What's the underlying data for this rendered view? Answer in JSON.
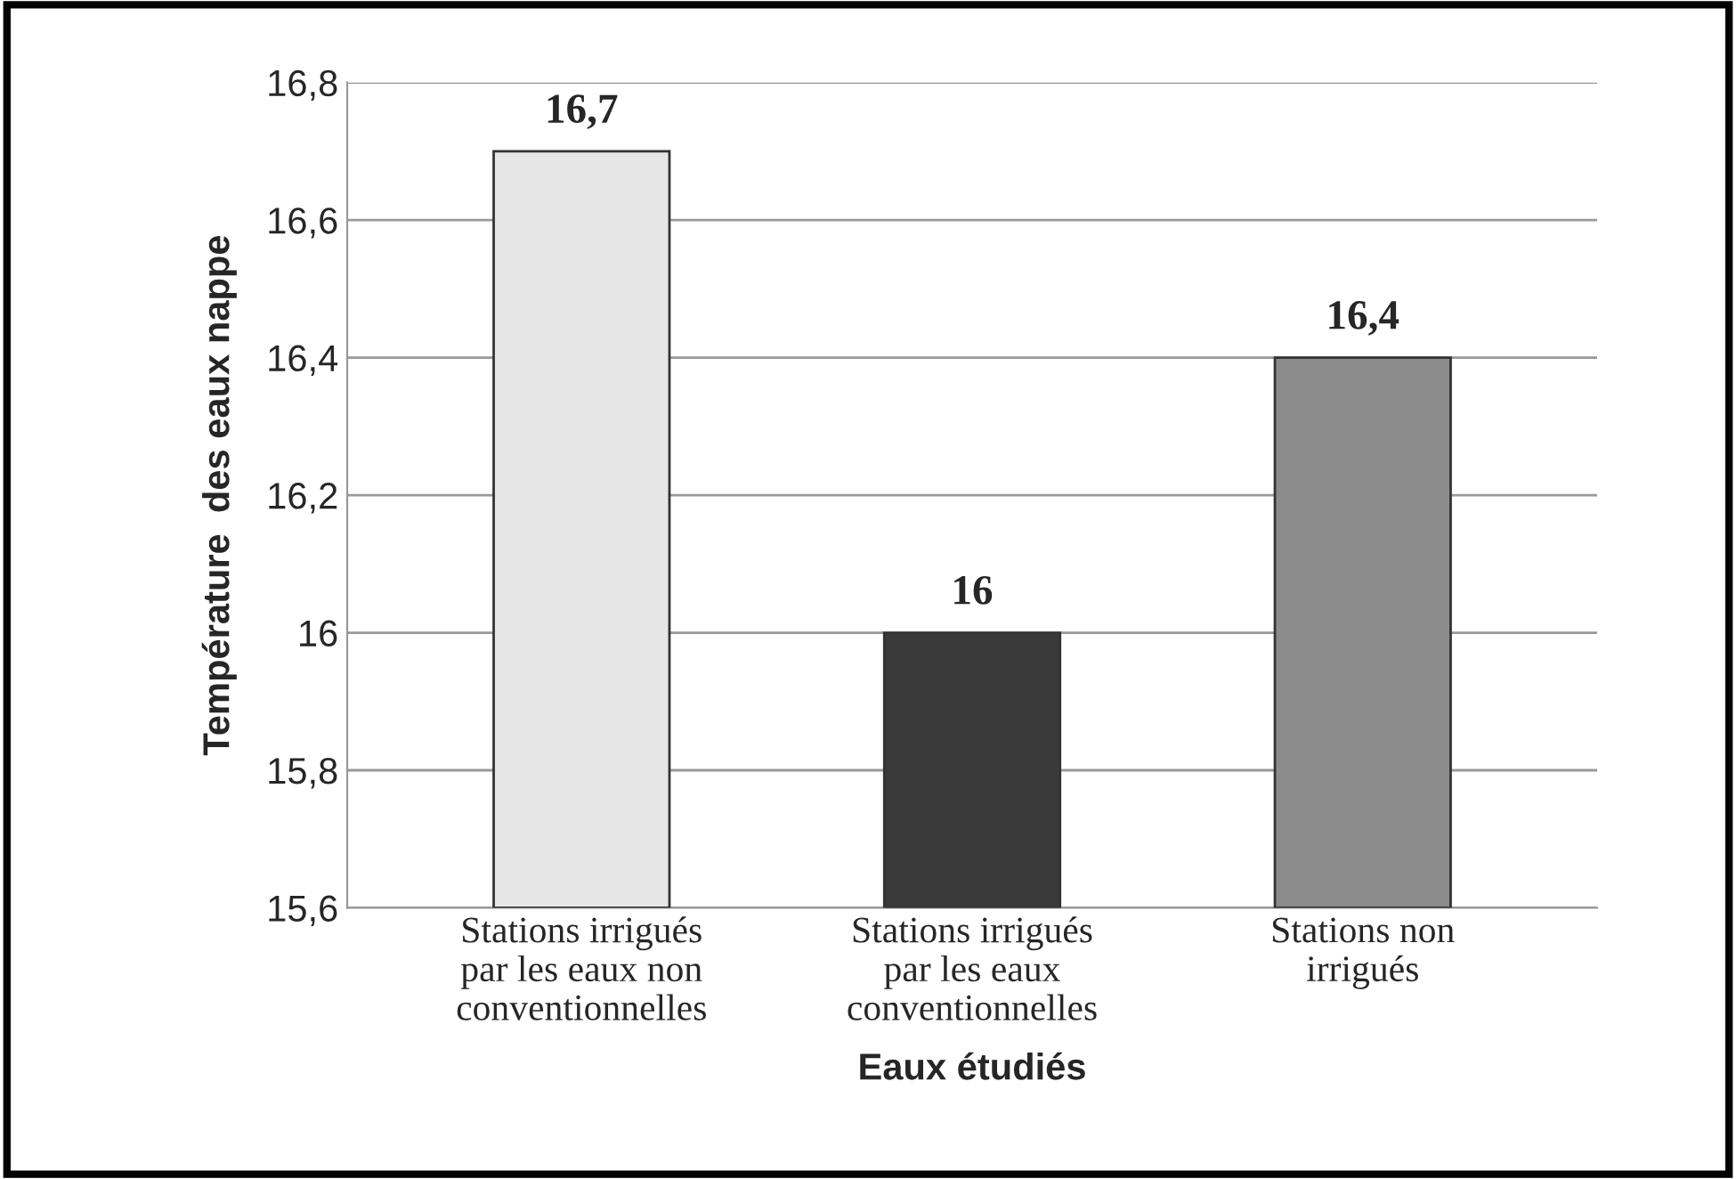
{
  "chart_data": {
    "type": "bar",
    "categories": [
      "Stations irrigués\npar les eaux non\nconventionnelles",
      "Stations irrigués\npar les eaux\nconventionnelles",
      "Stations non\nirrigués"
    ],
    "values": [
      16.7,
      16,
      16.4
    ],
    "colors": [
      "#e6e6e6",
      "#3a3a3a",
      "#8c8c8c"
    ],
    "value_labels": [
      "16,7",
      "16",
      "16,4"
    ],
    "xlabel": "Eaux étudiés",
    "ylabel": "Température  des eaux nappe",
    "ylim": [
      15.6,
      16.8
    ],
    "yticks": [
      {
        "value": 15.6,
        "label": "15,6"
      },
      {
        "value": 15.8,
        "label": "15,8"
      },
      16,
      {
        "value": 16.2,
        "label": "16,2"
      },
      {
        "value": 16.4,
        "label": "16,4"
      },
      {
        "value": 16.6,
        "label": "16,6"
      },
      {
        "value": 16.8,
        "label": "16,8"
      }
    ],
    "grid": "y",
    "legend": false
  }
}
